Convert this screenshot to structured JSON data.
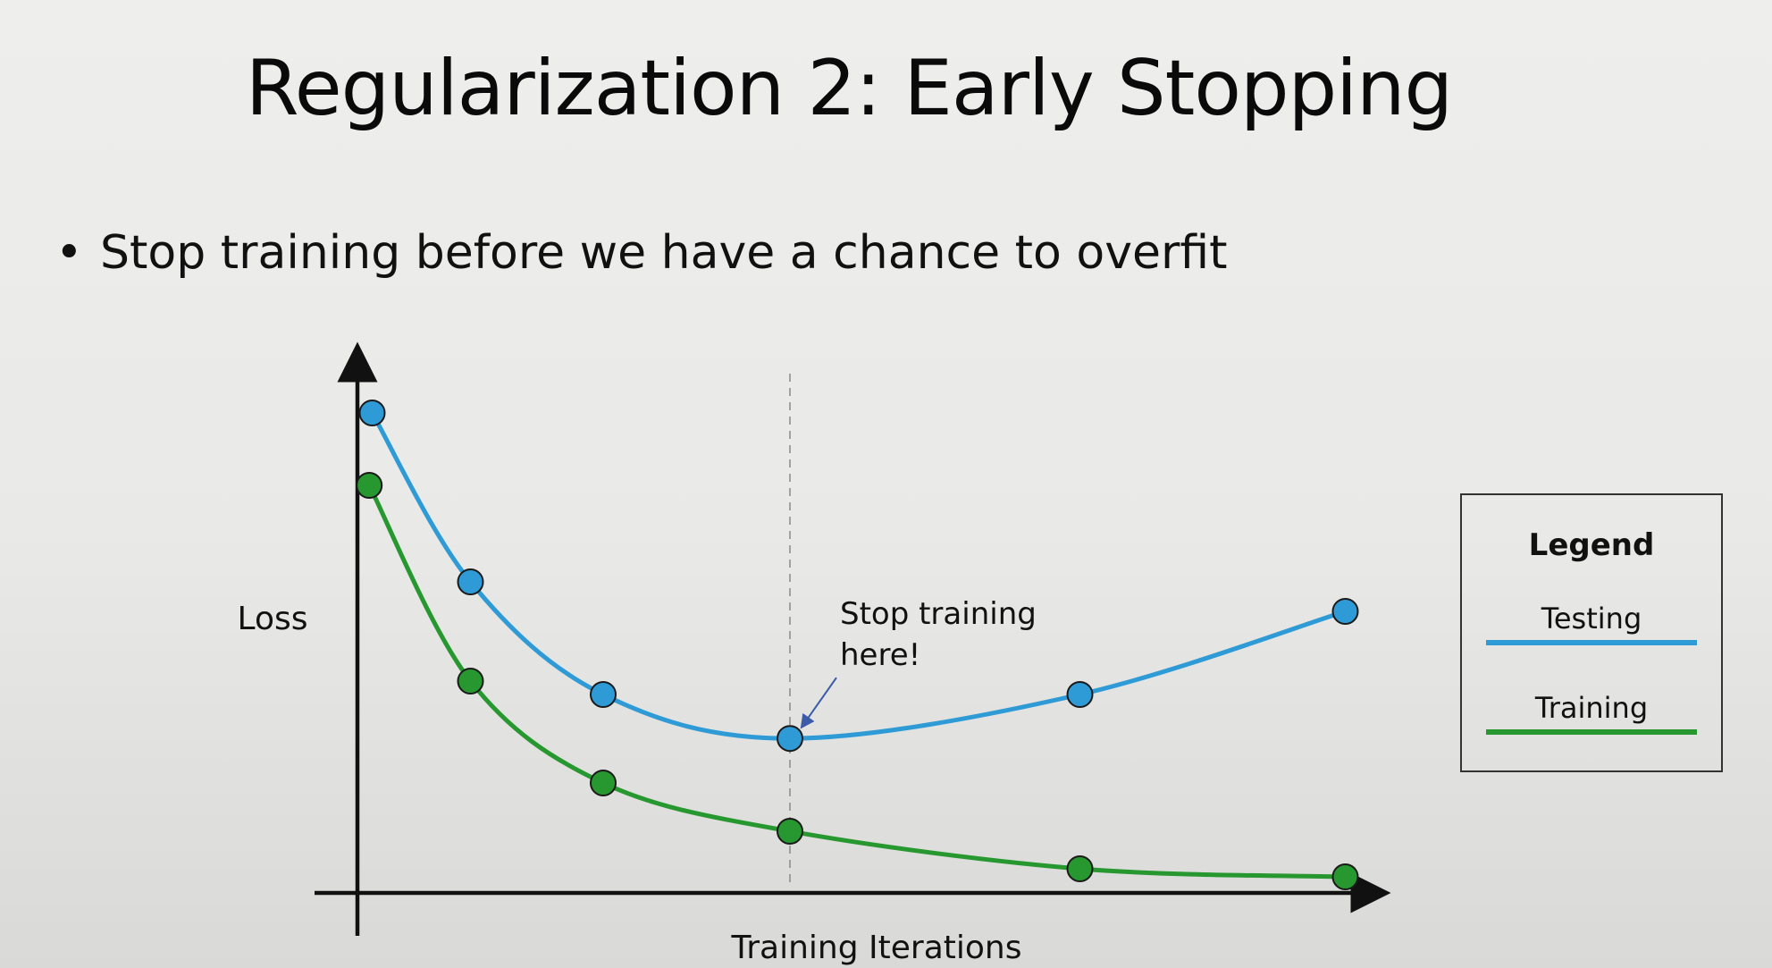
{
  "slide": {
    "title": "Regularization 2: Early Stopping",
    "bullet": "Stop training before we have a chance to overfit"
  },
  "colors": {
    "testing": "#2e9bd6",
    "training": "#27982f",
    "axis": "#111111",
    "annotation_arrow": "#3b5ba8",
    "guide_line": "#8a8a8a"
  },
  "chart_data": {
    "type": "line",
    "title": "",
    "xlabel": "Training Iterations",
    "ylabel": "Loss",
    "xlim": [
      0,
      10
    ],
    "ylim": [
      0,
      10
    ],
    "grid": false,
    "legend_position": "right",
    "legend_title": "Legend",
    "series": [
      {
        "name": "Testing",
        "x": [
          0.15,
          1.15,
          2.5,
          4.4,
          7.35,
          10.05
        ],
        "y": [
          8.95,
          5.8,
          3.7,
          2.88,
          3.7,
          5.25
        ]
      },
      {
        "name": "Training",
        "x": [
          0.12,
          1.15,
          2.5,
          4.4,
          7.35,
          10.05
        ],
        "y": [
          7.6,
          3.95,
          2.05,
          1.15,
          0.45,
          0.3
        ]
      }
    ],
    "annotations": [
      {
        "text_line1": "Stop training",
        "text_line2": "here!",
        "x": 4.4,
        "y": 2.88
      }
    ],
    "vertical_guide_x": 4.4
  }
}
